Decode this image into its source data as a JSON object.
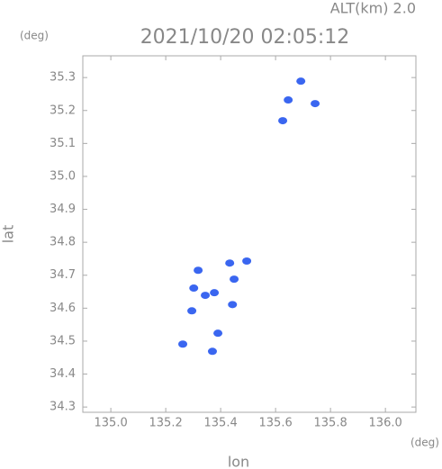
{
  "chart_data": {
    "type": "scatter",
    "title": "2021/10/20 02:05:12",
    "subtitle": "ALT(km) 2.0",
    "x_label": "lon",
    "y_label": "lat",
    "x_unit": "(deg)",
    "y_unit": "(deg)",
    "xlim": [
      134.898,
      136.111
    ],
    "ylim": [
      34.284,
      35.366
    ],
    "xticks": [
      {
        "value": 135,
        "label": "135.0"
      },
      135.2,
      135.4,
      135.6,
      135.8,
      {
        "value": 136,
        "label": "136.0"
      }
    ],
    "yticks": [
      34.3,
      34.4,
      34.5,
      34.6,
      34.7,
      34.8,
      34.9,
      {
        "value": 35,
        "label": "35.0"
      },
      35.1,
      35.2,
      35.3
    ],
    "series": [
      {
        "color": "#3a66f0",
        "x": [
          135.692,
          135.646,
          135.744,
          135.626,
          135.344,
          135.302,
          135.295,
          135.377,
          135.433,
          135.449,
          135.318,
          135.262,
          135.37,
          135.39,
          135.443,
          135.495
        ],
        "values": [
          35.289,
          35.232,
          35.221,
          35.169,
          34.639,
          34.661,
          34.592,
          34.647,
          34.737,
          34.688,
          34.715,
          34.491,
          34.469,
          34.524,
          34.611,
          34.743
        ]
      }
    ]
  }
}
